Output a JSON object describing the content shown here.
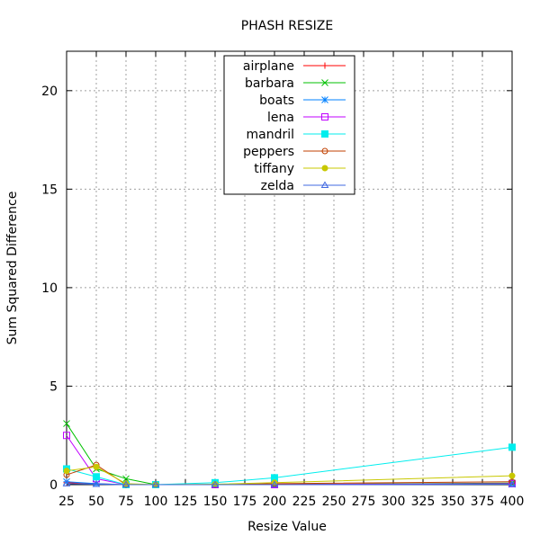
{
  "chart_data": {
    "type": "line",
    "title": "PHASH RESIZE",
    "xlabel": "Resize Value",
    "ylabel": "Sum Squared Difference",
    "xlim": [
      25,
      400
    ],
    "ylim": [
      0,
      22
    ],
    "x_ticks": [
      25,
      50,
      75,
      100,
      125,
      150,
      175,
      200,
      225,
      250,
      275,
      300,
      325,
      350,
      375,
      400
    ],
    "y_ticks": [
      0,
      5,
      10,
      15,
      20
    ],
    "grid": true,
    "legend_position": "top-center",
    "x": [
      25,
      50,
      75,
      100,
      150,
      200,
      400
    ],
    "series": [
      {
        "name": "airplane",
        "color": "#ff0000",
        "marker": "plus",
        "values": [
          0.1,
          0.05,
          0.0,
          0.0,
          0.0,
          0.02,
          0.05
        ]
      },
      {
        "name": "barbara",
        "color": "#00c000",
        "marker": "x",
        "values": [
          3.1,
          0.8,
          0.3,
          0.0,
          0.0,
          0.0,
          0.08
        ]
      },
      {
        "name": "boats",
        "color": "#0080ff",
        "marker": "star",
        "values": [
          0.15,
          0.05,
          0.0,
          0.0,
          0.0,
          0.0,
          0.02
        ]
      },
      {
        "name": "lena",
        "color": "#c000ff",
        "marker": "square-open",
        "values": [
          2.5,
          0.3,
          0.0,
          0.0,
          0.0,
          0.0,
          0.05
        ]
      },
      {
        "name": "mandril",
        "color": "#00eeee",
        "marker": "square-filled",
        "values": [
          0.8,
          0.4,
          0.0,
          0.0,
          0.1,
          0.35,
          1.9
        ]
      },
      {
        "name": "peppers",
        "color": "#c04000",
        "marker": "circle-open",
        "values": [
          0.5,
          1.0,
          0.0,
          0.0,
          0.0,
          0.05,
          0.15
        ]
      },
      {
        "name": "tiffany",
        "color": "#c8c800",
        "marker": "circle-filled",
        "values": [
          0.7,
          0.9,
          0.05,
          0.0,
          0.02,
          0.1,
          0.45
        ]
      },
      {
        "name": "zelda",
        "color": "#4169e1",
        "marker": "triangle-open",
        "values": [
          0.05,
          0.02,
          0.0,
          0.0,
          0.0,
          0.0,
          0.02
        ]
      }
    ]
  }
}
